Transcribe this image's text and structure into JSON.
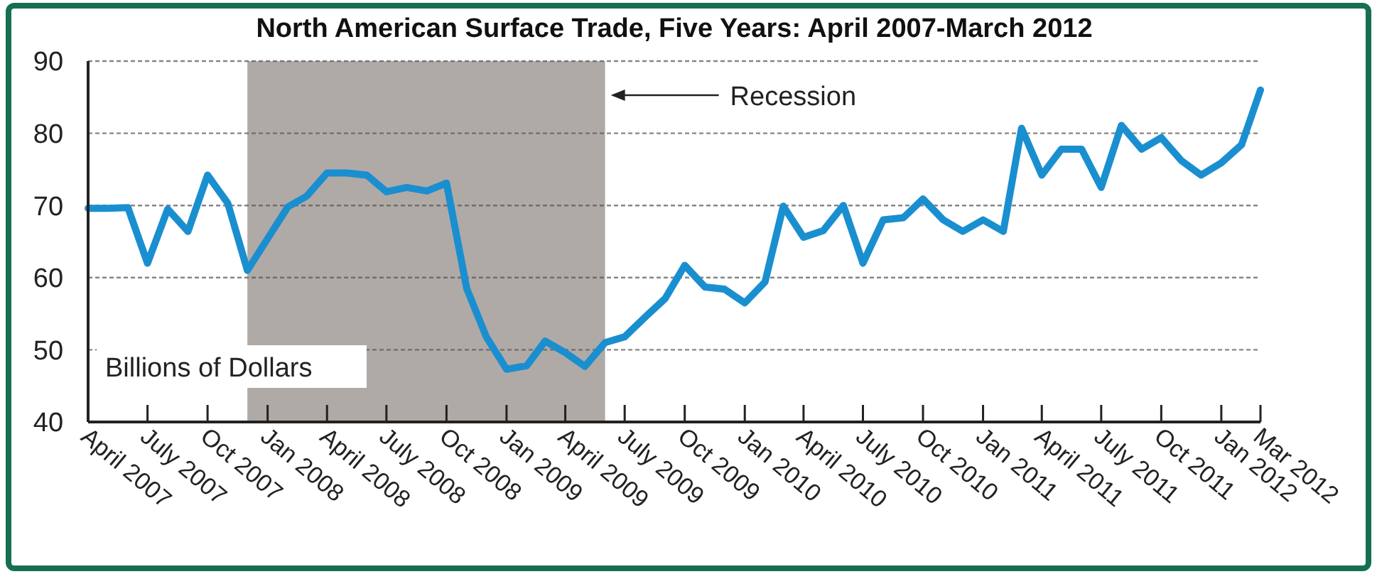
{
  "chart_data": {
    "type": "line",
    "title": "North American Surface Trade, Five Years: April 2007-March 2012",
    "ylabel": "Billions of Dollars",
    "x": [
      "2007-04",
      "2007-05",
      "2007-06",
      "2007-07",
      "2007-08",
      "2007-09",
      "2007-10",
      "2007-11",
      "2007-12",
      "2008-01",
      "2008-02",
      "2008-03",
      "2008-04",
      "2008-05",
      "2008-06",
      "2008-07",
      "2008-08",
      "2008-09",
      "2008-10",
      "2008-11",
      "2008-12",
      "2009-01",
      "2009-02",
      "2009-03",
      "2009-04",
      "2009-05",
      "2009-06",
      "2009-07",
      "2009-08",
      "2009-09",
      "2009-10",
      "2009-11",
      "2009-12",
      "2010-01",
      "2010-02",
      "2010-03",
      "2010-04",
      "2010-05",
      "2010-06",
      "2010-07",
      "2010-08",
      "2010-09",
      "2010-10",
      "2010-11",
      "2010-12",
      "2011-01",
      "2011-02",
      "2011-03",
      "2011-04",
      "2011-05",
      "2011-06",
      "2011-07",
      "2011-08",
      "2011-09",
      "2011-10",
      "2011-11",
      "2011-12",
      "2012-01",
      "2012-02",
      "2012-03"
    ],
    "series": [
      {
        "color": "#1a8fd0",
        "values": [
          69.6,
          69.6,
          69.7,
          62,
          69.5,
          66.4,
          74.2,
          70.3,
          61,
          65.4,
          69.8,
          71.3,
          74.5,
          74.5,
          74.2,
          71.9,
          72.5,
          72,
          73.1,
          58.5,
          51.8,
          47.3,
          47.8,
          51.2,
          49.6,
          47.7,
          51,
          51.8,
          54.5,
          57.1,
          61.7,
          58.7,
          58.4,
          56.5,
          59.4,
          69.9,
          65.6,
          66.5,
          70,
          62,
          68,
          68.3,
          70.9,
          68,
          66.4,
          68,
          66.4,
          80.7,
          74.2,
          77.8,
          77.8,
          72.5,
          81.1,
          77.8,
          79.4,
          76.2,
          74.2,
          75.9,
          78.4,
          86
        ]
      }
    ],
    "xlim": [
      "2007-04",
      "2012-03"
    ],
    "xticks": [
      {
        "value": "2007-04",
        "label": "April 2007"
      },
      {
        "value": "2007-07",
        "label": "July 2007"
      },
      {
        "value": "2007-10",
        "label": "Oct 2007"
      },
      {
        "value": "2008-01",
        "label": "Jan 2008"
      },
      {
        "value": "2008-04",
        "label": "April 2008"
      },
      {
        "value": "2008-07",
        "label": "July 2008"
      },
      {
        "value": "2008-10",
        "label": "Oct 2008"
      },
      {
        "value": "2009-01",
        "label": "Jan 2009"
      },
      {
        "value": "2009-04",
        "label": "April 2009"
      },
      {
        "value": "2009-07",
        "label": "July 2009"
      },
      {
        "value": "2009-10",
        "label": "Oct 2009"
      },
      {
        "value": "2010-01",
        "label": "Jan 2010"
      },
      {
        "value": "2010-04",
        "label": "April 2010"
      },
      {
        "value": "2010-07",
        "label": "July 2010"
      },
      {
        "value": "2010-10",
        "label": "Oct 2010"
      },
      {
        "value": "2011-01",
        "label": "Jan 2011"
      },
      {
        "value": "2011-04",
        "label": "April 2011"
      },
      {
        "value": "2011-07",
        "label": "July 2011"
      },
      {
        "value": "2011-10",
        "label": "Oct 2011"
      },
      {
        "value": "2012-01",
        "label": "Jan 2012"
      },
      {
        "value": "2012-03",
        "label": "Mar 2012"
      }
    ],
    "ylim": [
      40,
      90
    ],
    "yticks": [
      40,
      50,
      60,
      70,
      80,
      90
    ],
    "grid": "y",
    "bands": [
      {
        "axis": "x",
        "from": "2007-12",
        "to": "2009-06",
        "label": "Recession",
        "color": "#b0aaa7"
      }
    ]
  }
}
